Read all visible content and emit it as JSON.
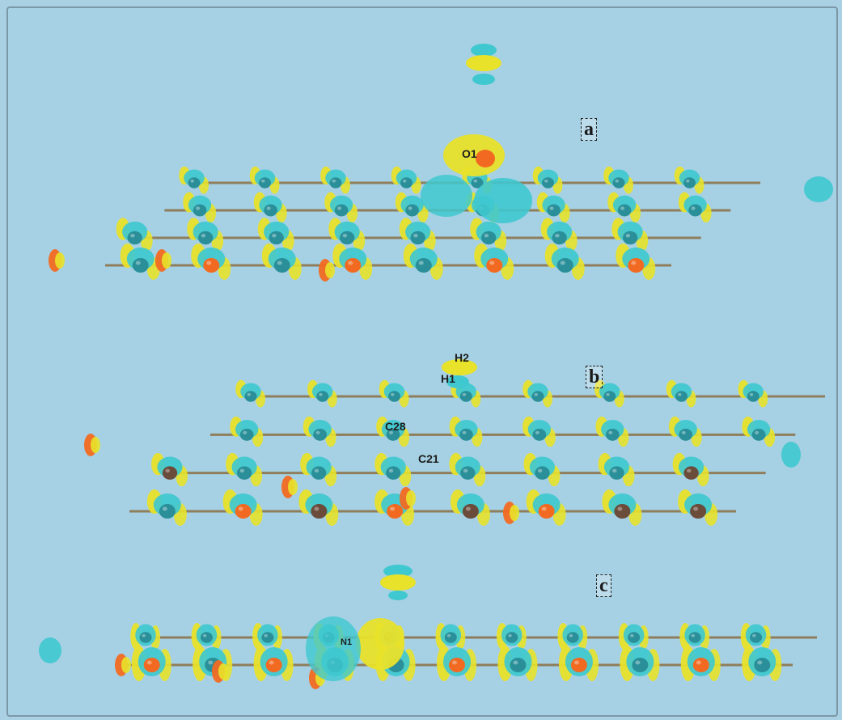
{
  "panels": [
    {
      "id": "a",
      "label": "a"
    },
    {
      "id": "b",
      "label": "b"
    },
    {
      "id": "c",
      "label": "c"
    }
  ],
  "atom_labels": {
    "o1": "O1",
    "h2": "H2",
    "h1": "H1",
    "c28": "C28",
    "c21": "C21",
    "n1": "N1"
  },
  "colors": {
    "background": "#a6d0e4",
    "positive_isosurface": "#e8e22a",
    "negative_isosurface": "#3fc8cf",
    "nitrogen_atom": "#f26a21",
    "carbon_atom": "#6b4b3a",
    "bond": "#8a6a3a"
  }
}
